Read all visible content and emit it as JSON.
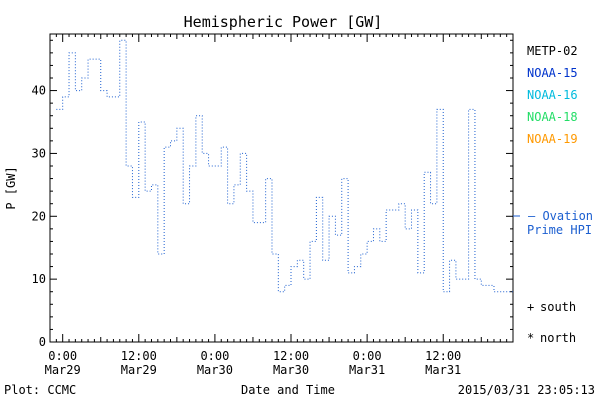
{
  "chart_data": {
    "type": "line",
    "title": "Hemispheric Power [GW]",
    "xlabel": "Date and Time",
    "ylabel": "P [GW]",
    "ylim": [
      0,
      49
    ],
    "xlim_hours": [
      -2,
      71
    ],
    "yticks": [
      0,
      10,
      20,
      30,
      40
    ],
    "xticks": [
      {
        "hour": 0,
        "time": "0:00",
        "date": "Mar29"
      },
      {
        "hour": 12,
        "time": "12:00",
        "date": "Mar29"
      },
      {
        "hour": 24,
        "time": "0:00",
        "date": "Mar30"
      },
      {
        "hour": 36,
        "time": "12:00",
        "date": "Mar30"
      },
      {
        "hour": 48,
        "time": "0:00",
        "date": "Mar31"
      },
      {
        "hour": 60,
        "time": "12:00",
        "date": "Mar31"
      }
    ],
    "grid": false,
    "legend_position": "right",
    "legend": [
      {
        "name": "METP-02",
        "color": "#000000"
      },
      {
        "name": "NOAA-15",
        "color": "#0033cc"
      },
      {
        "name": "NOAA-16",
        "color": "#00bbdd"
      },
      {
        "name": "NOAA-18",
        "color": "#22dd66"
      },
      {
        "name": "NOAA-19",
        "color": "#ff9900"
      }
    ],
    "series": [
      {
        "name": "Ovation Prime HPI",
        "color": "#1c5fd0",
        "style": "stepped-dotted",
        "x_hours": [
          -1,
          0,
          1,
          2,
          3,
          4,
          5,
          6,
          7,
          8,
          9,
          10,
          11,
          12,
          13,
          14,
          15,
          16,
          17,
          18,
          19,
          20,
          21,
          22,
          23,
          24,
          25,
          26,
          27,
          28,
          29,
          30,
          31,
          32,
          33,
          34,
          35,
          36,
          37,
          38,
          39,
          40,
          41,
          42,
          43,
          44,
          45,
          46,
          47,
          48,
          49,
          50,
          51,
          52,
          53,
          54,
          55,
          56,
          57,
          58,
          59,
          60,
          61,
          62,
          63,
          64,
          65,
          66,
          67,
          68,
          69,
          70
        ],
        "values": [
          37,
          39,
          46,
          40,
          42,
          45,
          45,
          40,
          39,
          39,
          48,
          28,
          23,
          35,
          24,
          25,
          14,
          31,
          32,
          34,
          22,
          28,
          36,
          30,
          28,
          28,
          31,
          22,
          25,
          30,
          24,
          19,
          19,
          26,
          14,
          8,
          9,
          12,
          13,
          10,
          16,
          23,
          13,
          20,
          17,
          26,
          11,
          12,
          14,
          16,
          18,
          16,
          21,
          21,
          22,
          18,
          21,
          11,
          27,
          22,
          37,
          8,
          13,
          10,
          10,
          37,
          10,
          9,
          9,
          8,
          8,
          8
        ]
      }
    ],
    "series_label": "— Ovation",
    "series_label2": "Prime HPI",
    "symbols": [
      {
        "marker": "+",
        "label": "south"
      },
      {
        "marker": "*",
        "label": "north"
      }
    ]
  },
  "footer": {
    "plot_credit": "Plot: CCMC",
    "timestamp": "2015/03/31 23:05:13"
  }
}
